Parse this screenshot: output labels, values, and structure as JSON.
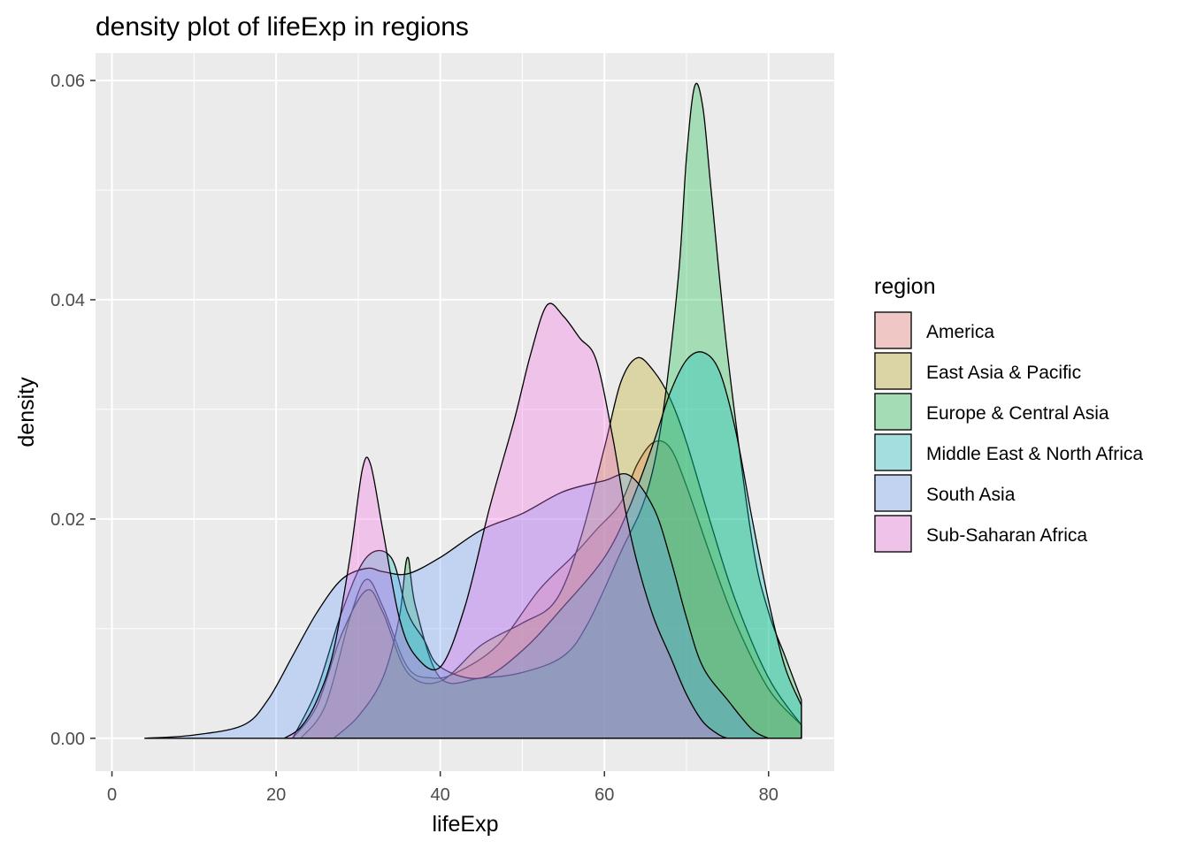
{
  "chart_data": {
    "type": "area",
    "title": "density plot of lifeExp in regions",
    "xlabel": "lifeExp",
    "ylabel": "density",
    "xlim": [
      -2,
      88
    ],
    "ylim": [
      -0.003,
      0.0625
    ],
    "x_ticks": [
      0,
      20,
      40,
      60,
      80
    ],
    "x_tick_labels": [
      "0",
      "20",
      "40",
      "60",
      "80"
    ],
    "y_ticks": [
      0,
      0.02,
      0.04,
      0.06
    ],
    "y_tick_labels": [
      "0.00",
      "0.02",
      "0.04",
      "0.06"
    ],
    "grid": true,
    "panel_background": "#ebebeb",
    "fill_opacity": 0.3,
    "legend": {
      "title": "region",
      "position": "right"
    },
    "series": [
      {
        "name": "America",
        "color": "#F8766D",
        "points": [
          [
            23,
            0
          ],
          [
            26,
            0.003
          ],
          [
            29,
            0.011
          ],
          [
            31,
            0.0145
          ],
          [
            33,
            0.012
          ],
          [
            36,
            0.0065
          ],
          [
            39,
            0.0055
          ],
          [
            42,
            0.006
          ],
          [
            47,
            0.0085
          ],
          [
            52,
            0.0135
          ],
          [
            56,
            0.0165
          ],
          [
            59,
            0.019
          ],
          [
            62,
            0.0215
          ],
          [
            64,
            0.025
          ],
          [
            66,
            0.027
          ],
          [
            68,
            0.0265
          ],
          [
            70,
            0.023
          ],
          [
            73,
            0.0165
          ],
          [
            76,
            0.0105
          ],
          [
            80,
            0.0045
          ],
          [
            84,
            0.0012
          ]
        ]
      },
      {
        "name": "East Asia & Pacific",
        "color": "#B79F00",
        "points": [
          [
            22,
            0
          ],
          [
            25,
            0.003
          ],
          [
            28,
            0.0095
          ],
          [
            31,
            0.0135
          ],
          [
            33,
            0.0115
          ],
          [
            36,
            0.006
          ],
          [
            40,
            0.0052
          ],
          [
            45,
            0.0085
          ],
          [
            50,
            0.0105
          ],
          [
            54,
            0.0125
          ],
          [
            57,
            0.018
          ],
          [
            60,
            0.0265
          ],
          [
            62,
            0.0325
          ],
          [
            64,
            0.0347
          ],
          [
            66,
            0.0335
          ],
          [
            68,
            0.031
          ],
          [
            70,
            0.027
          ],
          [
            73,
            0.0195
          ],
          [
            76,
            0.0125
          ],
          [
            80,
            0.0055
          ],
          [
            84,
            0.0012
          ]
        ]
      },
      {
        "name": "Europe & Central Asia",
        "color": "#00BA38",
        "points": [
          [
            27,
            0
          ],
          [
            30,
            0.002
          ],
          [
            33,
            0.0055
          ],
          [
            35,
            0.011
          ],
          [
            36,
            0.0165
          ],
          [
            37,
            0.012
          ],
          [
            40,
            0.0055
          ],
          [
            45,
            0.0055
          ],
          [
            50,
            0.006
          ],
          [
            55,
            0.0075
          ],
          [
            58,
            0.0105
          ],
          [
            62,
            0.017
          ],
          [
            65,
            0.022
          ],
          [
            67,
            0.029
          ],
          [
            69,
            0.042
          ],
          [
            70,
            0.053
          ],
          [
            71,
            0.0595
          ],
          [
            72,
            0.0575
          ],
          [
            73,
            0.05
          ],
          [
            75,
            0.035
          ],
          [
            78,
            0.018
          ],
          [
            80,
            0.0115
          ],
          [
            82,
            0.0075
          ],
          [
            84,
            0.0035
          ]
        ]
      },
      {
        "name": "Middle East & North Africa",
        "color": "#00BFC4",
        "points": [
          [
            22,
            0
          ],
          [
            25,
            0.0045
          ],
          [
            28,
            0.0115
          ],
          [
            31,
            0.0165
          ],
          [
            34,
            0.0165
          ],
          [
            36,
            0.0115
          ],
          [
            38,
            0.009
          ],
          [
            40,
            0.0065
          ],
          [
            45,
            0.0055
          ],
          [
            50,
            0.008
          ],
          [
            55,
            0.012
          ],
          [
            60,
            0.0165
          ],
          [
            63,
            0.021
          ],
          [
            66,
            0.027
          ],
          [
            68,
            0.0315
          ],
          [
            70,
            0.0345
          ],
          [
            72,
            0.0352
          ],
          [
            74,
            0.0335
          ],
          [
            76,
            0.028
          ],
          [
            78,
            0.02
          ],
          [
            80,
            0.0125
          ],
          [
            82,
            0.0065
          ],
          [
            84,
            0.003
          ]
        ]
      },
      {
        "name": "South Asia",
        "color": "#619CFF",
        "points": [
          [
            4,
            0
          ],
          [
            10,
            0.0003
          ],
          [
            16,
            0.0012
          ],
          [
            19,
            0.0035
          ],
          [
            22,
            0.0075
          ],
          [
            25,
            0.0115
          ],
          [
            28,
            0.0145
          ],
          [
            31,
            0.0155
          ],
          [
            33,
            0.0152
          ],
          [
            36,
            0.015
          ],
          [
            40,
            0.0165
          ],
          [
            45,
            0.019
          ],
          [
            50,
            0.0205
          ],
          [
            55,
            0.0225
          ],
          [
            60,
            0.0235
          ],
          [
            63,
            0.024
          ],
          [
            66,
            0.021
          ],
          [
            68,
            0.0165
          ],
          [
            70,
            0.011
          ],
          [
            72,
            0.0065
          ],
          [
            75,
            0.0035
          ],
          [
            78,
            0.0008
          ],
          [
            80,
            0
          ]
        ]
      },
      {
        "name": "Sub-Saharan Africa",
        "color": "#F564E3",
        "points": [
          [
            21,
            0
          ],
          [
            23,
            0.001
          ],
          [
            25,
            0.0035
          ],
          [
            27,
            0.008
          ],
          [
            29,
            0.0165
          ],
          [
            30.5,
            0.0245
          ],
          [
            31.5,
            0.025
          ],
          [
            33,
            0.019
          ],
          [
            35,
            0.011
          ],
          [
            37,
            0.0075
          ],
          [
            40,
            0.0065
          ],
          [
            43,
            0.012
          ],
          [
            46,
            0.021
          ],
          [
            49,
            0.029
          ],
          [
            51,
            0.035
          ],
          [
            53,
            0.0395
          ],
          [
            55,
            0.0385
          ],
          [
            57,
            0.0365
          ],
          [
            59,
            0.0345
          ],
          [
            61,
            0.0275
          ],
          [
            62.5,
            0.021
          ],
          [
            64,
            0.016
          ],
          [
            66,
            0.011
          ],
          [
            68,
            0.0075
          ],
          [
            70,
            0.004
          ],
          [
            72,
            0.0015
          ],
          [
            74,
            0.0003
          ],
          [
            75,
            0
          ]
        ]
      }
    ]
  }
}
